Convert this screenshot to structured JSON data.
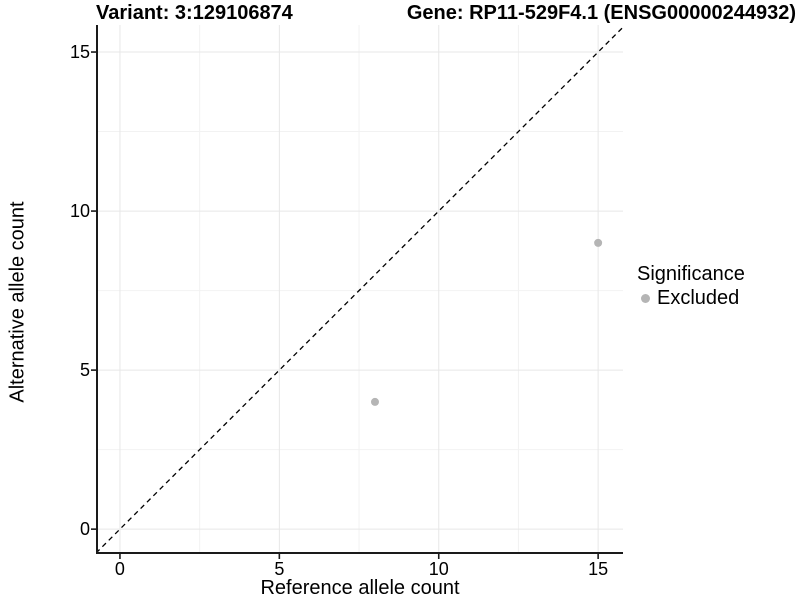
{
  "title": {
    "variant": "Variant: 3:129106874",
    "gene": "Gene: RP11-529F4.1 (ENSG00000244932)"
  },
  "chart_data": {
    "type": "scatter",
    "xlabel": "Reference allele count",
    "ylabel": "Alternative allele count",
    "xlim": [
      -0.72,
      15.78
    ],
    "ylim": [
      -0.75,
      15.85
    ],
    "xticks": [
      0,
      5,
      10,
      15
    ],
    "yticks": [
      0,
      5,
      10,
      15
    ],
    "minor_xticks": [
      2.5,
      7.5,
      12.5
    ],
    "minor_yticks": [
      2.5,
      7.5,
      12.5
    ],
    "grid": "major+minor",
    "identity_line": {
      "type": "y=x",
      "style": "dashed",
      "color": "#000000"
    },
    "series": [
      {
        "name": "Excluded",
        "color": "#b5b5b5",
        "points": [
          {
            "x": 8,
            "y": 4
          },
          {
            "x": 15,
            "y": 9
          }
        ]
      }
    ],
    "legend": {
      "title": "Significance",
      "position": "right",
      "items": [
        {
          "label": "Excluded",
          "color": "#b5b5b5",
          "marker": "circle"
        }
      ]
    },
    "colors": {
      "major_grid": "#e7e7e7",
      "minor_grid": "#f2f2f2",
      "axis_line": "#1a1a1a",
      "text": "#000000",
      "background": "#ffffff"
    }
  }
}
